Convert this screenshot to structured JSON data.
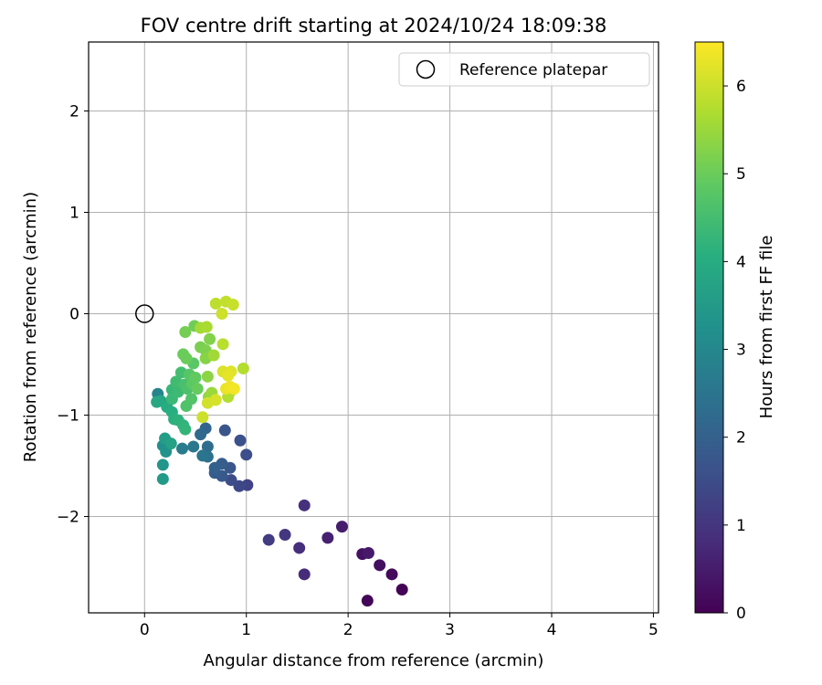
{
  "chart_data": {
    "type": "scatter",
    "title": "FOV centre drift starting at 2024/10/24 18:09:38",
    "xlabel": "Angular distance from reference (arcmin)",
    "ylabel": "Rotation from reference (arcmin)",
    "xlim": [
      -0.55,
      5.05
    ],
    "ylim": [
      -2.95,
      2.68
    ],
    "xticks": [
      0,
      1,
      2,
      3,
      4,
      5
    ],
    "yticks": [
      -2,
      -1,
      0,
      1,
      2
    ],
    "grid": true,
    "legend": {
      "location": "upper right",
      "entries": [
        {
          "label": "Reference platepar",
          "marker": "open-circle"
        }
      ]
    },
    "reference_point": {
      "x": 0,
      "y": 0
    },
    "colorbar": {
      "label": "Hours from first FF file",
      "colormap": "viridis",
      "range": [
        0,
        6.5
      ],
      "ticks": [
        0,
        1,
        2,
        3,
        4,
        5,
        6
      ]
    },
    "points": [
      {
        "x": 2.53,
        "y": -2.72,
        "t": 0.05
      },
      {
        "x": 2.19,
        "y": -2.83,
        "t": 0.1
      },
      {
        "x": 2.43,
        "y": -2.57,
        "t": 0.15
      },
      {
        "x": 2.31,
        "y": -2.48,
        "t": 0.25
      },
      {
        "x": 2.14,
        "y": -2.37,
        "t": 0.3
      },
      {
        "x": 2.2,
        "y": -2.36,
        "t": 0.45
      },
      {
        "x": 1.94,
        "y": -2.1,
        "t": 0.5
      },
      {
        "x": 1.8,
        "y": -2.21,
        "t": 0.6
      },
      {
        "x": 1.57,
        "y": -2.57,
        "t": 0.8
      },
      {
        "x": 1.52,
        "y": -2.31,
        "t": 0.85
      },
      {
        "x": 1.57,
        "y": -1.89,
        "t": 0.9
      },
      {
        "x": 1.38,
        "y": -2.18,
        "t": 1.0
      },
      {
        "x": 1.22,
        "y": -2.23,
        "t": 1.15
      },
      {
        "x": 1.01,
        "y": -1.69,
        "t": 1.3
      },
      {
        "x": 0.93,
        "y": -1.7,
        "t": 1.4
      },
      {
        "x": 0.85,
        "y": -1.64,
        "t": 1.5
      },
      {
        "x": 1.0,
        "y": -1.39,
        "t": 1.55
      },
      {
        "x": 0.94,
        "y": -1.25,
        "t": 1.6
      },
      {
        "x": 0.79,
        "y": -1.15,
        "t": 1.7
      },
      {
        "x": 0.84,
        "y": -1.52,
        "t": 1.75
      },
      {
        "x": 0.76,
        "y": -1.6,
        "t": 1.8
      },
      {
        "x": 0.69,
        "y": -1.57,
        "t": 1.85
      },
      {
        "x": 0.76,
        "y": -1.48,
        "t": 1.9
      },
      {
        "x": 0.69,
        "y": -1.52,
        "t": 2.0
      },
      {
        "x": 0.6,
        "y": -1.13,
        "t": 2.1
      },
      {
        "x": 0.55,
        "y": -1.19,
        "t": 2.2
      },
      {
        "x": 0.62,
        "y": -1.31,
        "t": 2.3
      },
      {
        "x": 0.62,
        "y": -1.41,
        "t": 2.4
      },
      {
        "x": 0.57,
        "y": -1.4,
        "t": 2.5
      },
      {
        "x": 0.48,
        "y": -1.31,
        "t": 2.6
      },
      {
        "x": 0.37,
        "y": -1.33,
        "t": 2.7
      },
      {
        "x": 0.13,
        "y": -0.79,
        "t": 2.9
      },
      {
        "x": 0.18,
        "y": -1.3,
        "t": 3.2
      },
      {
        "x": 0.21,
        "y": -1.36,
        "t": 3.3
      },
      {
        "x": 0.18,
        "y": -1.49,
        "t": 3.4
      },
      {
        "x": 0.18,
        "y": -1.63,
        "t": 3.5
      },
      {
        "x": 0.2,
        "y": -1.23,
        "t": 3.6
      },
      {
        "x": 0.26,
        "y": -1.28,
        "t": 3.7
      },
      {
        "x": 0.16,
        "y": -0.86,
        "t": 3.8
      },
      {
        "x": 0.12,
        "y": -0.87,
        "t": 3.9
      },
      {
        "x": 0.22,
        "y": -0.92,
        "t": 4.0
      },
      {
        "x": 0.27,
        "y": -0.97,
        "t": 4.05
      },
      {
        "x": 0.29,
        "y": -1.04,
        "t": 4.1
      },
      {
        "x": 0.33,
        "y": -1.05,
        "t": 4.15
      },
      {
        "x": 0.38,
        "y": -1.1,
        "t": 4.2
      },
      {
        "x": 0.4,
        "y": -1.14,
        "t": 4.25
      },
      {
        "x": 0.27,
        "y": -0.75,
        "t": 4.3
      },
      {
        "x": 0.27,
        "y": -0.84,
        "t": 4.35
      },
      {
        "x": 0.33,
        "y": -0.77,
        "t": 4.4
      },
      {
        "x": 0.31,
        "y": -0.67,
        "t": 4.45
      },
      {
        "x": 0.36,
        "y": -0.58,
        "t": 4.5
      },
      {
        "x": 0.39,
        "y": -0.7,
        "t": 4.55
      },
      {
        "x": 0.42,
        "y": -0.74,
        "t": 4.6
      },
      {
        "x": 0.41,
        "y": -0.91,
        "t": 4.65
      },
      {
        "x": 0.46,
        "y": -0.84,
        "t": 4.7
      },
      {
        "x": 0.44,
        "y": -0.6,
        "t": 4.75
      },
      {
        "x": 0.48,
        "y": -0.49,
        "t": 4.8
      },
      {
        "x": 0.47,
        "y": -0.69,
        "t": 4.85
      },
      {
        "x": 0.5,
        "y": -0.63,
        "t": 4.9
      },
      {
        "x": 0.52,
        "y": -0.74,
        "t": 4.95
      },
      {
        "x": 0.38,
        "y": -0.4,
        "t": 5.0
      },
      {
        "x": 0.41,
        "y": -0.44,
        "t": 5.0
      },
      {
        "x": 0.49,
        "y": -0.12,
        "t": 5.05
      },
      {
        "x": 0.4,
        "y": -0.18,
        "t": 5.1
      },
      {
        "x": 0.55,
        "y": -0.33,
        "t": 5.15
      },
      {
        "x": 0.6,
        "y": -0.36,
        "t": 5.2
      },
      {
        "x": 0.64,
        "y": -0.25,
        "t": 5.25
      },
      {
        "x": 0.6,
        "y": -0.44,
        "t": 5.3
      },
      {
        "x": 0.62,
        "y": -0.62,
        "t": 5.35
      },
      {
        "x": 0.63,
        "y": -0.82,
        "t": 5.4
      },
      {
        "x": 0.66,
        "y": -0.78,
        "t": 5.5
      },
      {
        "x": 0.68,
        "y": -0.41,
        "t": 5.55
      },
      {
        "x": 0.55,
        "y": -0.14,
        "t": 5.6
      },
      {
        "x": 0.61,
        "y": -0.13,
        "t": 5.65
      },
      {
        "x": 0.84,
        "y": -0.77,
        "t": 5.7
      },
      {
        "x": 0.97,
        "y": -0.54,
        "t": 5.75
      },
      {
        "x": 0.82,
        "y": -0.82,
        "t": 5.75
      },
      {
        "x": 0.77,
        "y": -0.3,
        "t": 5.8
      },
      {
        "x": 0.7,
        "y": 0.1,
        "t": 5.85
      },
      {
        "x": 0.8,
        "y": 0.12,
        "t": 5.9
      },
      {
        "x": 0.87,
        "y": 0.09,
        "t": 5.95
      },
      {
        "x": 0.76,
        "y": 0.0,
        "t": 6.0
      },
      {
        "x": 0.57,
        "y": -1.02,
        "t": 6.0
      },
      {
        "x": 0.62,
        "y": -0.88,
        "t": 6.05
      },
      {
        "x": 0.7,
        "y": -0.85,
        "t": 6.1
      },
      {
        "x": 0.77,
        "y": -0.57,
        "t": 6.15
      },
      {
        "x": 0.85,
        "y": -0.57,
        "t": 6.2
      },
      {
        "x": 0.82,
        "y": -0.61,
        "t": 6.25
      },
      {
        "x": 0.8,
        "y": -0.74,
        "t": 6.3
      },
      {
        "x": 0.84,
        "y": -0.72,
        "t": 6.35
      },
      {
        "x": 0.88,
        "y": -0.74,
        "t": 6.4
      }
    ]
  }
}
